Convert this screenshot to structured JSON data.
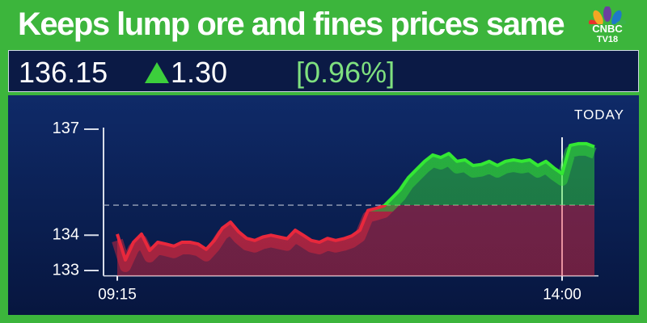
{
  "header": {
    "title": "Keeps lump ore and fines prices same",
    "logo": [
      "CNBC",
      "TV18"
    ]
  },
  "quote": {
    "price": "136.15",
    "change": "1.30",
    "change_pct": "[0.96%]"
  },
  "chart_data": {
    "type": "line",
    "period": "TODAY",
    "values": [
      134.03,
      133.3,
      133.8,
      134.03,
      133.57,
      133.8,
      133.75,
      133.69,
      133.8,
      133.8,
      133.75,
      133.6,
      133.85,
      134.2,
      134.37,
      134.1,
      133.91,
      133.85,
      133.95,
      134.0,
      133.95,
      133.9,
      134.14,
      134.0,
      133.85,
      133.8,
      133.91,
      133.85,
      133.9,
      133.98,
      134.14,
      134.7,
      134.76,
      134.83,
      135.06,
      135.29,
      135.63,
      135.86,
      136.09,
      136.27,
      136.2,
      136.31,
      136.09,
      136.13,
      135.97,
      136.0,
      136.09,
      135.97,
      136.09,
      136.13,
      136.09,
      136.13,
      135.97,
      136.09,
      135.9,
      135.74,
      136.54,
      136.59,
      136.59,
      136.5
    ],
    "reference_line": 134.85,
    "colors": {
      "above": "#33e833",
      "below": "#e8283c"
    },
    "xlim": [
      0,
      59
    ],
    "xticks": [
      {
        "value": 0,
        "label": "09:15"
      },
      {
        "value": 55,
        "label": "14:00"
      }
    ],
    "ylim": [
      132.85,
      137.25
    ],
    "yticks": [
      133,
      134,
      137
    ]
  }
}
